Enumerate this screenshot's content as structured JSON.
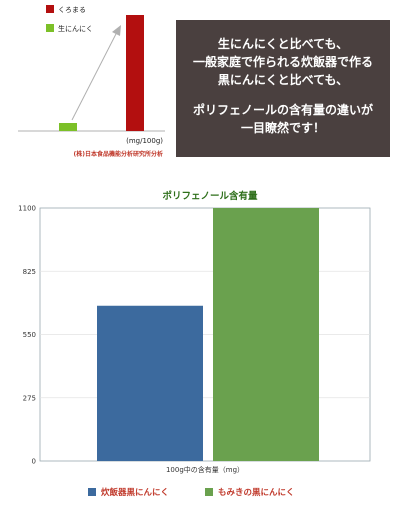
{
  "top_chart": {
    "legend": [
      {
        "label": "くろまる",
        "color": "#b30f0f"
      },
      {
        "label": "生にんにく",
        "color": "#7cc028"
      }
    ],
    "unit_label": "(mg/100g)",
    "source": "(株)日本食品機能分析研究所分析",
    "values": {
      "raw": 55,
      "kuromaru": 1100
    }
  },
  "banner": {
    "lines": [
      "生にんにくと比べても、",
      "一般家庭で作られる炊飯器で作る",
      "黒にんにくと比べても、",
      "",
      "ポリフェノールの含有量の違いが",
      "一目瞭然です！"
    ],
    "bg_color": "#4a403f"
  },
  "chart_data": {
    "type": "bar",
    "title": "ポリフェノール含有量",
    "xlabel": "100g中の含有量（mg）",
    "categories": [
      "炊飯器黒にんにく",
      "もみきの黒にんにく"
    ],
    "values": [
      675,
      1100
    ],
    "colors": [
      "#3c6a9e",
      "#6aa14e"
    ],
    "ylim": [
      0,
      1100
    ],
    "yticks": [
      0,
      275,
      550,
      825,
      1100
    ],
    "legend_position": "bottom"
  }
}
